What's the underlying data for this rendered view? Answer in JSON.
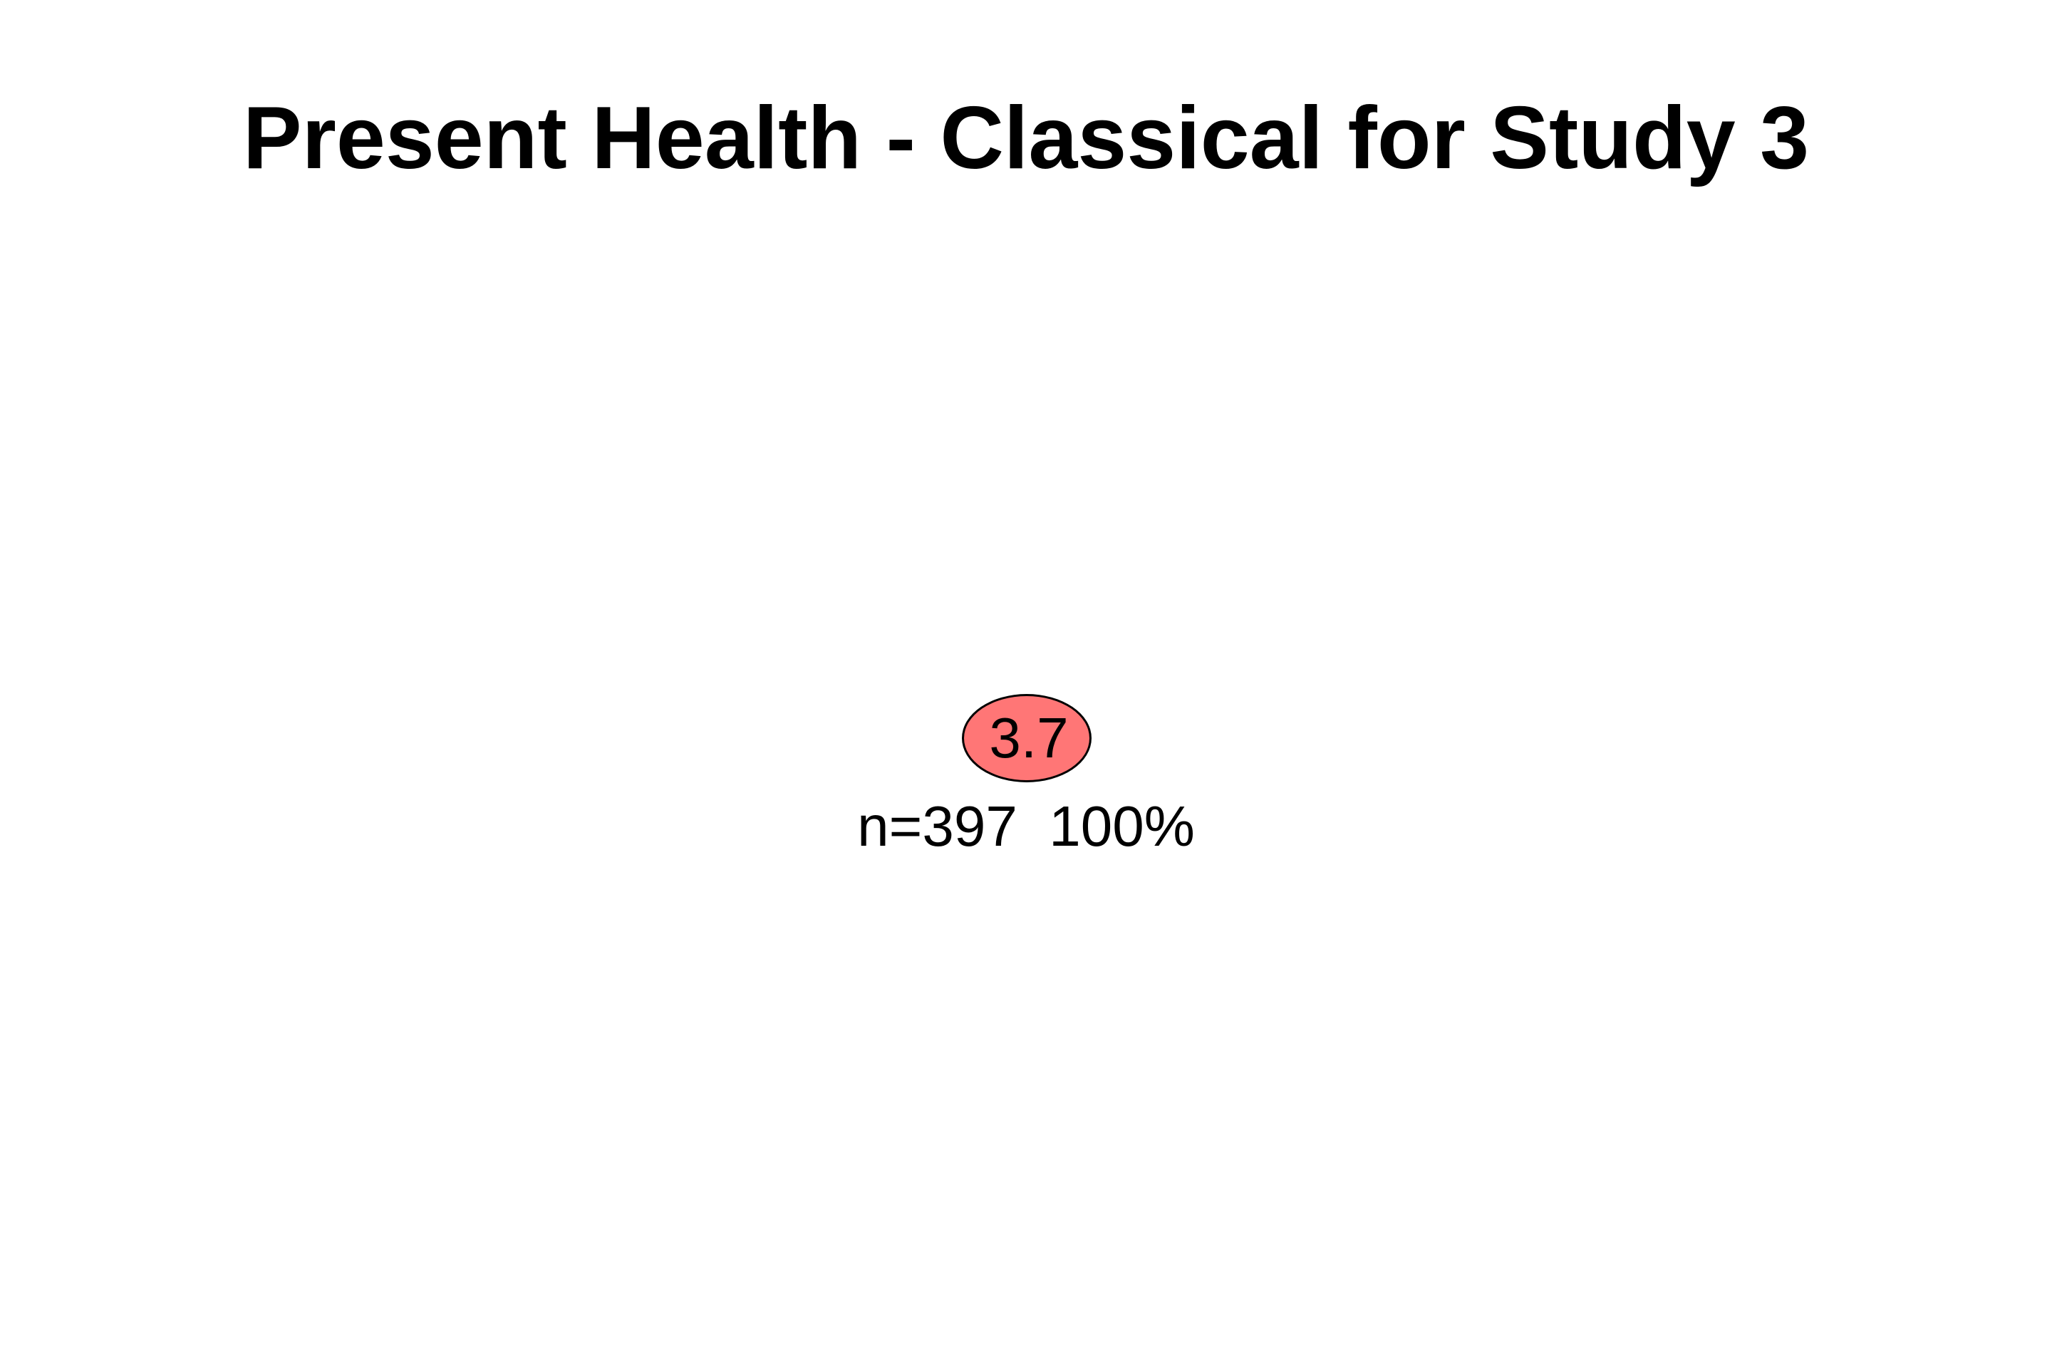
{
  "title": "Present Health - Classical for Study 3",
  "colors": {
    "background": "#ffffff",
    "node_fill": "#ff7676",
    "node_border": "#000000",
    "text": "#000000"
  },
  "tree": {
    "root": {
      "value": "3.7",
      "n": 397,
      "percent": "100%",
      "info_label": "n=397  100%"
    }
  }
}
